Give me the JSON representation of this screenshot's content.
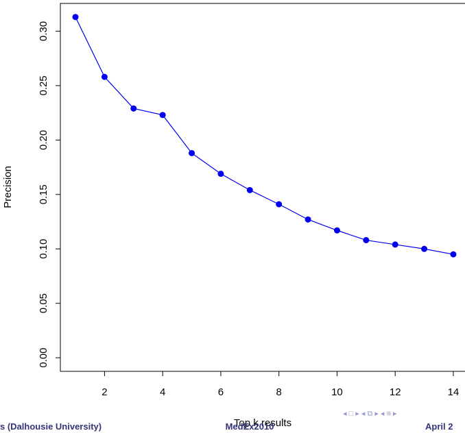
{
  "chart_data": {
    "type": "line",
    "xlabel": "Top k results",
    "ylabel": "Precision",
    "x": [
      1,
      2,
      3,
      4,
      5,
      6,
      7,
      8,
      9,
      10,
      11,
      12,
      13,
      14
    ],
    "series": [
      {
        "color": "#0000ee",
        "values": [
          0.313,
          0.258,
          0.229,
          0.223,
          0.188,
          0.169,
          0.154,
          0.141,
          0.127,
          0.117,
          0.108,
          0.104,
          0.1,
          0.095
        ]
      }
    ],
    "xlim": [
      0.48,
      14.52
    ],
    "ylim": [
      -0.0125,
      0.3255
    ],
    "xticks": [
      2,
      4,
      6,
      8,
      10,
      12,
      14
    ],
    "yticks": [
      {
        "value": 0,
        "label": "0.00"
      },
      0.05,
      {
        "value": 0.1,
        "label": "0.10"
      },
      0.15,
      {
        "value": 0.2,
        "label": "0.20"
      },
      0.25,
      {
        "value": 0.3,
        "label": "0.30"
      }
    ]
  },
  "footer": {
    "left": "s (Dalhousie University)",
    "center": "MedEx2010",
    "right": "April 2"
  }
}
